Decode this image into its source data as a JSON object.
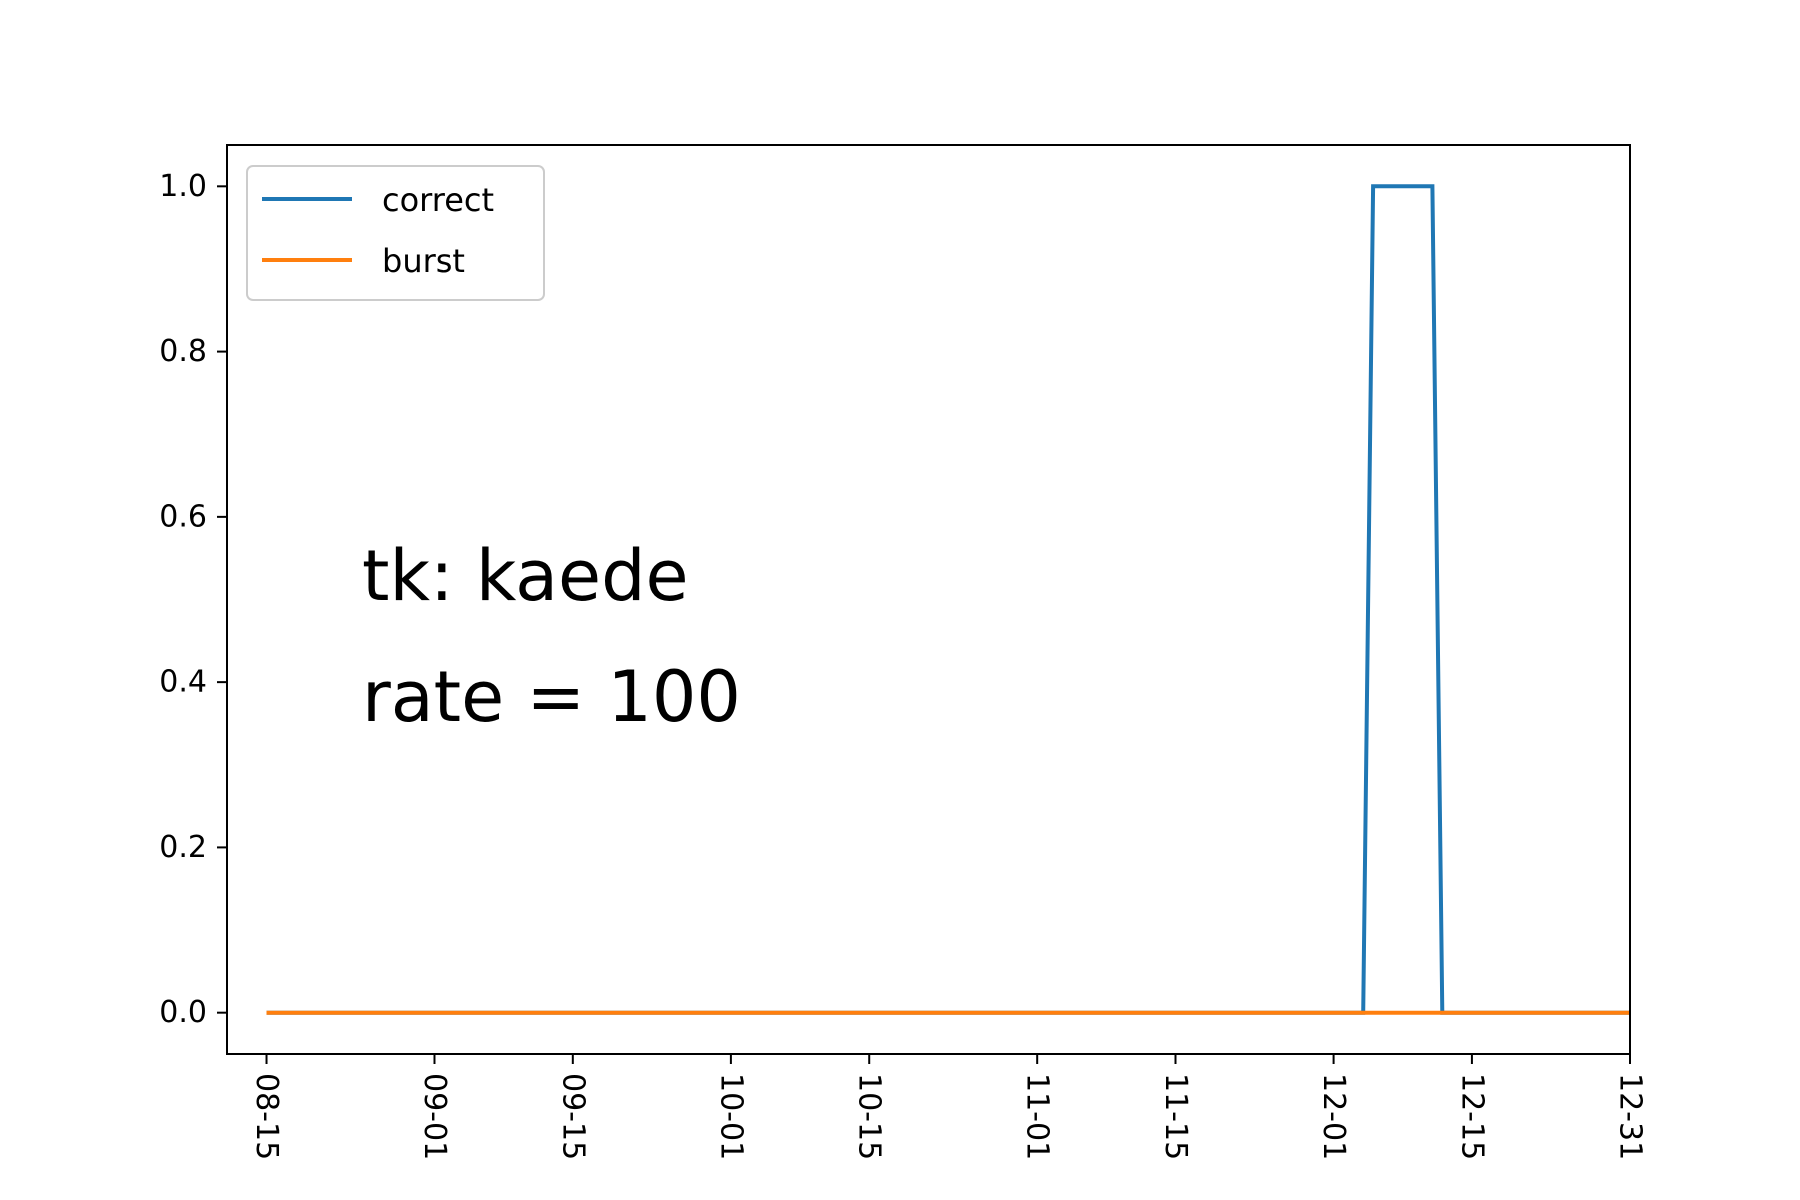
{
  "chart_data": {
    "type": "line",
    "title": "",
    "xlabel": "",
    "ylabel": "",
    "x_ticks": [
      "08-15",
      "09-01",
      "09-15",
      "10-01",
      "10-15",
      "11-01",
      "11-15",
      "12-01",
      "12-15",
      "12-31"
    ],
    "y_ticks": [
      "0.0",
      "0.2",
      "0.4",
      "0.6",
      "0.8",
      "1.0"
    ],
    "xlim": [
      "08-11",
      "12-31"
    ],
    "ylim": [
      -0.05,
      1.05
    ],
    "grid": false,
    "legend": {
      "position": "top-left",
      "entries": [
        "correct",
        "burst"
      ]
    },
    "annotations": [
      "tk: kaede",
      "rate = 100"
    ],
    "series": [
      {
        "name": "correct",
        "color": "#1f77b4",
        "points": [
          {
            "x": "08-15",
            "y": 0
          },
          {
            "x": "12-04",
            "y": 0
          },
          {
            "x": "12-05",
            "y": 1
          },
          {
            "x": "12-11",
            "y": 1
          },
          {
            "x": "12-12",
            "y": 0
          },
          {
            "x": "12-31",
            "y": 0
          }
        ]
      },
      {
        "name": "burst",
        "color": "#ff7f0e",
        "points": [
          {
            "x": "08-15",
            "y": 0
          },
          {
            "x": "12-31",
            "y": 0
          }
        ]
      }
    ]
  }
}
